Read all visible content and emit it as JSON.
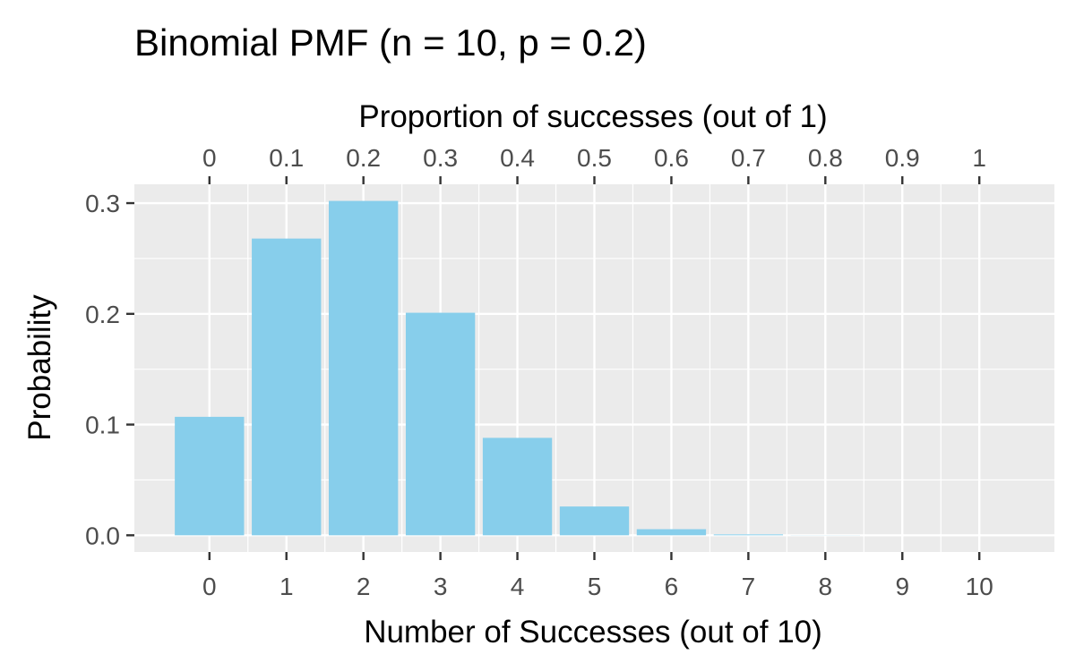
{
  "chart_data": {
    "type": "bar",
    "title": "Binomial PMF (n = 10, p = 0.2)",
    "xlabel": "Number of Successes (out of 10)",
    "ylabel": "Probability",
    "secondary_xlabel": "Proportion of successes (out of 1)",
    "categories": [
      "0",
      "1",
      "2",
      "3",
      "4",
      "5",
      "6",
      "7",
      "8",
      "9",
      "10"
    ],
    "x": [
      0,
      1,
      2,
      3,
      4,
      5,
      6,
      7,
      8,
      9,
      10
    ],
    "values": [
      0.107,
      0.268,
      0.302,
      0.201,
      0.088,
      0.026,
      0.0055,
      0.0008,
      0.0001,
      0.0,
      0.0
    ],
    "secondary_ticks": [
      "0",
      "0.1",
      "0.2",
      "0.3",
      "0.4",
      "0.5",
      "0.6",
      "0.7",
      "0.8",
      "0.9",
      "1"
    ],
    "y_ticks": [
      0.0,
      0.1,
      0.2,
      0.3
    ],
    "y_tick_labels": [
      "0.0",
      "0.1",
      "0.2",
      "0.3"
    ],
    "ylim": [
      -0.0151,
      0.317
    ],
    "xlim": [
      -0.975,
      10.975
    ],
    "grid": true,
    "bar_color": "#87ceeb",
    "panel_color": "#ebebeb",
    "grid_color": "#ffffff"
  }
}
